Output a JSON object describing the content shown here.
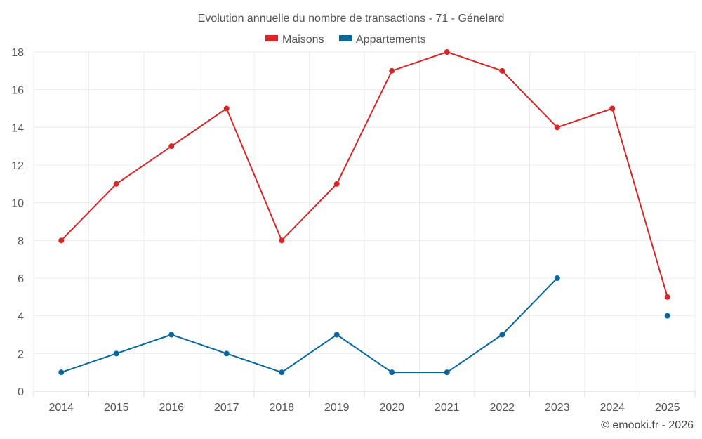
{
  "chart_data": {
    "type": "line",
    "title": "Evolution annuelle du nombre de transactions - 71 - Génelard",
    "categories": [
      "2014",
      "2015",
      "2016",
      "2017",
      "2018",
      "2019",
      "2020",
      "2021",
      "2022",
      "2023",
      "2024",
      "2025"
    ],
    "series": [
      {
        "name": "Maisons",
        "color": "#d62728",
        "values": [
          8,
          11,
          13,
          15,
          8,
          11,
          17,
          18,
          17,
          14,
          15,
          5
        ]
      },
      {
        "name": "Appartements",
        "color": "#08689e",
        "values": [
          1,
          2,
          3,
          2,
          1,
          3,
          1,
          1,
          3,
          6,
          null,
          4
        ]
      }
    ],
    "ylim": [
      0,
      18
    ],
    "yticks": [
      0,
      2,
      4,
      6,
      8,
      10,
      12,
      14,
      16,
      18
    ],
    "xlabel": "",
    "ylabel": "",
    "grid": true,
    "legend": "top-center"
  },
  "credit": "© emooki.fr - 2026"
}
